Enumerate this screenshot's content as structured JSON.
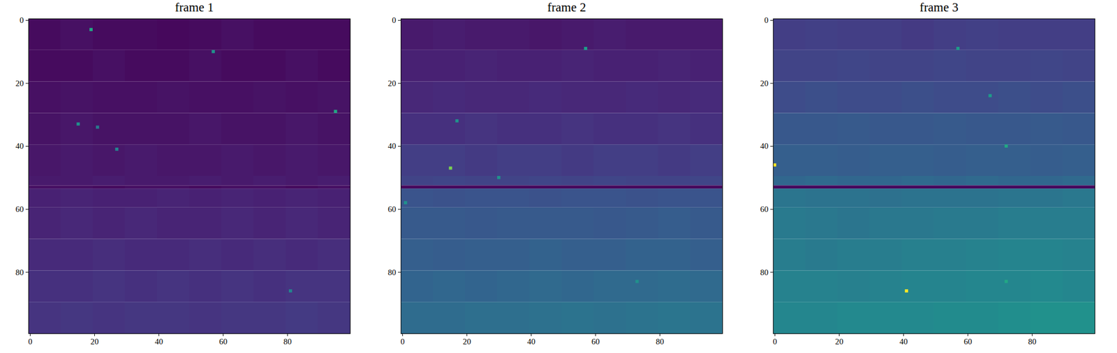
{
  "chart_data": [
    {
      "type": "heatmap",
      "title": "frame 1",
      "xlim": [
        -0.5,
        99.5
      ],
      "ylim": [
        99.5,
        -0.5
      ],
      "xticks": [
        0,
        20,
        40,
        60,
        80
      ],
      "yticks": [
        0,
        20,
        40,
        60,
        80
      ],
      "color_range": [
        0,
        1
      ],
      "grid": false,
      "x_edges": [
        -0.5,
        9.5,
        19.5,
        29.5,
        39.5,
        49.5,
        59.5,
        69.5,
        79.5,
        89.5,
        99.5
      ],
      "y_edges": [
        -0.5,
        9.5,
        19.5,
        29.5,
        39.5,
        49.5,
        52.5,
        53.5,
        59.5,
        69.5,
        79.5,
        89.5,
        99.5
      ],
      "cells": [
        [
          0.03,
          0.04,
          0.03,
          0.03,
          0.02,
          0.03,
          0.04,
          0.03,
          0.03,
          0.03
        ],
        [
          0.03,
          0.03,
          0.04,
          0.03,
          0.03,
          0.04,
          0.03,
          0.03,
          0.04,
          0.03
        ],
        [
          0.04,
          0.05,
          0.04,
          0.04,
          0.05,
          0.04,
          0.04,
          0.05,
          0.04,
          0.05
        ],
        [
          0.05,
          0.06,
          0.05,
          0.05,
          0.05,
          0.06,
          0.05,
          0.05,
          0.06,
          0.05
        ],
        [
          0.06,
          0.07,
          0.06,
          0.07,
          0.06,
          0.06,
          0.07,
          0.06,
          0.07,
          0.06
        ],
        [
          0.07,
          0.07,
          0.08,
          0.07,
          0.07,
          0.08,
          0.07,
          0.08,
          0.07,
          0.08
        ],
        [
          0.04,
          0.04,
          0.03,
          0.04,
          0.04,
          0.03,
          0.04,
          0.04,
          0.03,
          0.04
        ],
        [
          0.09,
          0.1,
          0.09,
          0.09,
          0.1,
          0.09,
          0.1,
          0.09,
          0.1,
          0.09
        ],
        [
          0.1,
          0.11,
          0.1,
          0.11,
          0.1,
          0.1,
          0.11,
          0.1,
          0.11,
          0.1
        ],
        [
          0.12,
          0.12,
          0.13,
          0.12,
          0.12,
          0.13,
          0.12,
          0.13,
          0.12,
          0.13
        ],
        [
          0.14,
          0.14,
          0.15,
          0.14,
          0.15,
          0.14,
          0.15,
          0.14,
          0.15,
          0.15
        ],
        [
          0.15,
          0.16,
          0.15,
          0.16,
          0.16,
          0.15,
          0.16,
          0.16,
          0.17,
          0.16
        ]
      ],
      "hot_pixels": [
        {
          "x": 19,
          "y": 3,
          "value": 0.6
        },
        {
          "x": 57,
          "y": 10,
          "value": 0.5
        },
        {
          "x": 15,
          "y": 33,
          "value": 0.5
        },
        {
          "x": 95,
          "y": 29,
          "value": 0.6
        },
        {
          "x": 27,
          "y": 41,
          "value": 0.45
        },
        {
          "x": 21,
          "y": 34,
          "value": 0.4
        },
        {
          "x": 81,
          "y": 86,
          "value": 0.45
        }
      ]
    },
    {
      "type": "heatmap",
      "title": "frame 2",
      "xlim": [
        -0.5,
        99.5
      ],
      "ylim": [
        99.5,
        -0.5
      ],
      "xticks": [
        0,
        20,
        40,
        60,
        80
      ],
      "yticks": [
        0,
        20,
        40,
        60,
        80
      ],
      "color_range": [
        0,
        1
      ],
      "grid": false,
      "x_edges": [
        -0.5,
        9.5,
        19.5,
        29.5,
        39.5,
        49.5,
        59.5,
        69.5,
        79.5,
        89.5,
        99.5
      ],
      "y_edges": [
        -0.5,
        9.5,
        19.5,
        29.5,
        39.5,
        49.5,
        52.5,
        53.5,
        59.5,
        69.5,
        79.5,
        89.5,
        99.5
      ],
      "cells": [
        [
          0.07,
          0.08,
          0.07,
          0.07,
          0.06,
          0.07,
          0.08,
          0.07,
          0.07,
          0.07
        ],
        [
          0.09,
          0.09,
          0.1,
          0.09,
          0.09,
          0.1,
          0.09,
          0.09,
          0.1,
          0.09
        ],
        [
          0.11,
          0.12,
          0.11,
          0.11,
          0.12,
          0.11,
          0.11,
          0.12,
          0.11,
          0.12
        ],
        [
          0.14,
          0.14,
          0.15,
          0.14,
          0.14,
          0.15,
          0.14,
          0.14,
          0.15,
          0.14
        ],
        [
          0.18,
          0.18,
          0.17,
          0.18,
          0.18,
          0.17,
          0.18,
          0.18,
          0.17,
          0.18
        ],
        [
          0.2,
          0.21,
          0.2,
          0.2,
          0.21,
          0.2,
          0.21,
          0.2,
          0.2,
          0.21
        ],
        [
          0.02,
          0.02,
          0.02,
          0.02,
          0.02,
          0.02,
          0.02,
          0.02,
          0.02,
          0.02
        ],
        [
          0.26,
          0.25,
          0.26,
          0.26,
          0.25,
          0.26,
          0.26,
          0.25,
          0.26,
          0.26
        ],
        [
          0.28,
          0.28,
          0.27,
          0.28,
          0.28,
          0.28,
          0.27,
          0.28,
          0.29,
          0.28
        ],
        [
          0.3,
          0.29,
          0.3,
          0.3,
          0.31,
          0.3,
          0.3,
          0.31,
          0.31,
          0.3
        ],
        [
          0.32,
          0.33,
          0.32,
          0.33,
          0.34,
          0.33,
          0.34,
          0.34,
          0.35,
          0.34
        ],
        [
          0.35,
          0.35,
          0.36,
          0.36,
          0.37,
          0.38,
          0.37,
          0.38,
          0.39,
          0.38
        ]
      ],
      "hot_pixels": [
        {
          "x": 15,
          "y": 47,
          "value": 0.8
        },
        {
          "x": 57,
          "y": 9,
          "value": 0.55
        },
        {
          "x": 17,
          "y": 32,
          "value": 0.5
        },
        {
          "x": 73,
          "y": 83,
          "value": 0.5
        },
        {
          "x": 1,
          "y": 58,
          "value": 0.5
        },
        {
          "x": 30,
          "y": 50,
          "value": 0.5
        }
      ]
    },
    {
      "type": "heatmap",
      "title": "frame 3",
      "xlim": [
        -0.5,
        99.5
      ],
      "ylim": [
        99.5,
        -0.5
      ],
      "xticks": [
        0,
        20,
        40,
        60,
        80
      ],
      "yticks": [
        0,
        20,
        40,
        60,
        80
      ],
      "color_range": [
        0,
        1
      ],
      "grid": false,
      "x_edges": [
        -0.5,
        9.5,
        19.5,
        29.5,
        39.5,
        49.5,
        59.5,
        69.5,
        79.5,
        89.5,
        99.5
      ],
      "y_edges": [
        -0.5,
        9.5,
        19.5,
        29.5,
        39.5,
        49.5,
        52.5,
        53.5,
        59.5,
        69.5,
        79.5,
        89.5,
        99.5
      ],
      "cells": [
        [
          0.18,
          0.19,
          0.18,
          0.18,
          0.17,
          0.18,
          0.19,
          0.18,
          0.18,
          0.18
        ],
        [
          0.2,
          0.2,
          0.21,
          0.2,
          0.2,
          0.21,
          0.2,
          0.2,
          0.21,
          0.2
        ],
        [
          0.23,
          0.24,
          0.23,
          0.23,
          0.24,
          0.23,
          0.23,
          0.24,
          0.23,
          0.24
        ],
        [
          0.27,
          0.27,
          0.28,
          0.27,
          0.27,
          0.28,
          0.27,
          0.27,
          0.28,
          0.27
        ],
        [
          0.3,
          0.3,
          0.29,
          0.3,
          0.3,
          0.29,
          0.3,
          0.3,
          0.29,
          0.3
        ],
        [
          0.33,
          0.34,
          0.33,
          0.33,
          0.34,
          0.33,
          0.34,
          0.33,
          0.33,
          0.34
        ],
        [
          0.02,
          0.02,
          0.02,
          0.02,
          0.02,
          0.02,
          0.02,
          0.02,
          0.02,
          0.02
        ],
        [
          0.39,
          0.38,
          0.38,
          0.37,
          0.38,
          0.38,
          0.38,
          0.39,
          0.39,
          0.4
        ],
        [
          0.41,
          0.4,
          0.39,
          0.4,
          0.4,
          0.41,
          0.41,
          0.42,
          0.42,
          0.42
        ],
        [
          0.42,
          0.41,
          0.42,
          0.42,
          0.43,
          0.43,
          0.44,
          0.45,
          0.45,
          0.44
        ],
        [
          0.44,
          0.44,
          0.43,
          0.44,
          0.45,
          0.45,
          0.46,
          0.46,
          0.47,
          0.46
        ],
        [
          0.46,
          0.46,
          0.47,
          0.47,
          0.47,
          0.48,
          0.48,
          0.49,
          0.5,
          0.5
        ]
      ],
      "hot_pixels": [
        {
          "x": 0,
          "y": 46,
          "value": 1.0
        },
        {
          "x": 41,
          "y": 86,
          "value": 1.0
        },
        {
          "x": 72,
          "y": 40,
          "value": 0.6
        },
        {
          "x": 67,
          "y": 24,
          "value": 0.55
        },
        {
          "x": 72,
          "y": 83,
          "value": 0.6
        },
        {
          "x": 57,
          "y": 9,
          "value": 0.55
        }
      ]
    }
  ]
}
